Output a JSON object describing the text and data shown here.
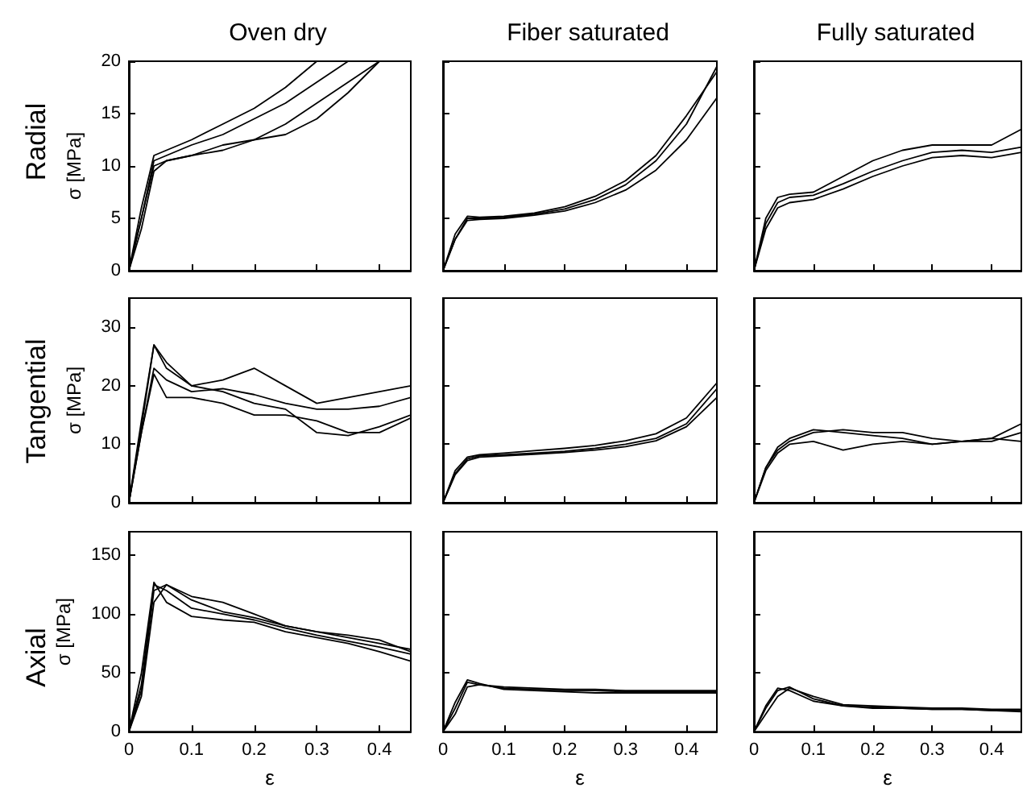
{
  "chart_data": [
    {
      "type": "line",
      "title": "Oven dry",
      "ylabel": "σ [MPa]",
      "annotations": [
        "Radial"
      ],
      "tick_labels": "y",
      "x": [
        0,
        0.02,
        0.04,
        0.06,
        0.1,
        0.15,
        0.2,
        0.25,
        0.3,
        0.35,
        0.4
      ],
      "xlim": [
        0,
        0.45
      ],
      "xticks": [
        0,
        0.1,
        0.2,
        0.3,
        0.4
      ],
      "ylim": [
        0,
        20
      ],
      "yticks": [
        0,
        5,
        10,
        15,
        20
      ],
      "series": [
        {
          "color": "#000000",
          "values": [
            0,
            6,
            11,
            11.5,
            12.5,
            14,
            15.5,
            17.5,
            20,
            null,
            null
          ]
        },
        {
          "color": "#000000",
          "values": [
            0,
            5,
            10.5,
            11,
            12,
            13,
            14.5,
            16,
            18,
            20,
            null
          ]
        },
        {
          "color": "#000000",
          "values": [
            0,
            5,
            10,
            10.5,
            11,
            11.5,
            12.5,
            14,
            16,
            18,
            20
          ]
        },
        {
          "color": "#000000",
          "values": [
            0,
            4,
            9.5,
            10.5,
            11,
            12,
            12.5,
            13,
            14.5,
            17,
            20
          ]
        }
      ]
    },
    {
      "type": "line",
      "title": "Fiber saturated",
      "tick_labels": false,
      "x": [
        0,
        0.02,
        0.04,
        0.06,
        0.1,
        0.15,
        0.2,
        0.25,
        0.3,
        0.35,
        0.4,
        0.45
      ],
      "xlim": [
        0,
        0.45
      ],
      "xticks": [
        0,
        0.1,
        0.2,
        0.3,
        0.4
      ],
      "ylim": [
        0,
        20
      ],
      "yticks": [
        0,
        5,
        10,
        15,
        20
      ],
      "series": [
        {
          "color": "#000000",
          "values": [
            0,
            3,
            5,
            5,
            5.1,
            5.4,
            5.9,
            6.8,
            8.2,
            10.5,
            14,
            19.5
          ]
        },
        {
          "color": "#000000",
          "values": [
            0,
            3.5,
            5.2,
            5.1,
            5.2,
            5.5,
            6.1,
            7.1,
            8.6,
            11,
            14.8,
            19
          ]
        },
        {
          "color": "#000000",
          "values": [
            0,
            3,
            4.8,
            4.9,
            5,
            5.3,
            5.7,
            6.5,
            7.7,
            9.6,
            12.5,
            16.5
          ]
        }
      ]
    },
    {
      "type": "line",
      "title": "Fully saturated",
      "tick_labels": false,
      "x": [
        0,
        0.02,
        0.04,
        0.06,
        0.1,
        0.15,
        0.2,
        0.25,
        0.3,
        0.35,
        0.4,
        0.45
      ],
      "xlim": [
        0,
        0.45
      ],
      "xticks": [
        0,
        0.1,
        0.2,
        0.3,
        0.4
      ],
      "ylim": [
        0,
        20
      ],
      "yticks": [
        0,
        5,
        10,
        15,
        20
      ],
      "series": [
        {
          "color": "#000000",
          "values": [
            0,
            4.5,
            6.5,
            7,
            7.2,
            8.3,
            9.5,
            10.5,
            11.3,
            11.5,
            11.3,
            11.8
          ]
        },
        {
          "color": "#000000",
          "values": [
            0,
            5,
            7,
            7.3,
            7.5,
            9,
            10.5,
            11.5,
            12,
            12,
            12,
            13.5
          ]
        },
        {
          "color": "#000000",
          "values": [
            0,
            4,
            6,
            6.5,
            6.8,
            7.8,
            9,
            10,
            10.8,
            11,
            10.8,
            11.3
          ]
        }
      ]
    },
    {
      "type": "line",
      "ylabel": "σ [MPa]",
      "annotations": [
        "Tangential"
      ],
      "tick_labels": "y",
      "x": [
        0,
        0.02,
        0.04,
        0.06,
        0.1,
        0.15,
        0.2,
        0.25,
        0.3,
        0.35,
        0.4,
        0.45
      ],
      "xlim": [
        0,
        0.45
      ],
      "xticks": [
        0,
        0.1,
        0.2,
        0.3,
        0.4
      ],
      "ylim": [
        0,
        35
      ],
      "yticks": [
        0,
        10,
        20,
        30
      ],
      "series": [
        {
          "color": "#000000",
          "values": [
            0,
            14,
            27,
            24,
            20,
            21,
            23,
            20,
            17,
            18,
            19,
            20
          ]
        },
        {
          "color": "#000000",
          "values": [
            0,
            12,
            23,
            21,
            19,
            19.5,
            18.5,
            17,
            16,
            16,
            16.5,
            18
          ]
        },
        {
          "color": "#000000",
          "values": [
            0,
            12,
            22,
            18,
            18,
            17,
            15,
            15,
            14,
            12,
            12,
            14.5
          ]
        },
        {
          "color": "#000000",
          "values": [
            0,
            13,
            27,
            23,
            20,
            19,
            17,
            16,
            12,
            11.5,
            13,
            15
          ]
        }
      ]
    },
    {
      "type": "line",
      "tick_labels": false,
      "x": [
        0,
        0.02,
        0.04,
        0.06,
        0.1,
        0.15,
        0.2,
        0.25,
        0.3,
        0.35,
        0.4,
        0.45
      ],
      "xlim": [
        0,
        0.45
      ],
      "xticks": [
        0,
        0.1,
        0.2,
        0.3,
        0.4
      ],
      "ylim": [
        0,
        35
      ],
      "yticks": [
        0,
        10,
        20,
        30
      ],
      "series": [
        {
          "color": "#000000",
          "values": [
            0,
            5,
            7.5,
            8,
            8.2,
            8.5,
            8.8,
            9.3,
            10,
            11,
            13.5,
            19.5
          ]
        },
        {
          "color": "#000000",
          "values": [
            0,
            5.5,
            7.8,
            8.2,
            8.5,
            8.9,
            9.3,
            9.8,
            10.6,
            11.8,
            14.5,
            20.5
          ]
        },
        {
          "color": "#000000",
          "values": [
            0,
            4.8,
            7.2,
            7.8,
            8,
            8.3,
            8.6,
            9,
            9.6,
            10.6,
            13,
            18
          ]
        }
      ]
    },
    {
      "type": "line",
      "tick_labels": false,
      "x": [
        0,
        0.02,
        0.04,
        0.06,
        0.1,
        0.15,
        0.2,
        0.25,
        0.3,
        0.35,
        0.4,
        0.45
      ],
      "xlim": [
        0,
        0.45
      ],
      "xticks": [
        0,
        0.1,
        0.2,
        0.3,
        0.4
      ],
      "ylim": [
        0,
        35
      ],
      "yticks": [
        0,
        10,
        20,
        30
      ],
      "series": [
        {
          "color": "#000000",
          "values": [
            0,
            6,
            9,
            10.5,
            12,
            12.5,
            12,
            12,
            11,
            10.5,
            10.5,
            12
          ]
        },
        {
          "color": "#000000",
          "values": [
            0,
            6,
            9.5,
            11,
            12.5,
            12,
            11.5,
            11,
            10,
            10.5,
            11,
            13.5
          ]
        },
        {
          "color": "#000000",
          "values": [
            0,
            5.5,
            8.5,
            10,
            10.5,
            9,
            10,
            10.5,
            10,
            10.5,
            11,
            10.5
          ]
        }
      ]
    },
    {
      "type": "line",
      "xlabel": "ε",
      "ylabel": "σ [MPa]",
      "annotations": [
        "Axial"
      ],
      "x": [
        0,
        0.02,
        0.04,
        0.06,
        0.1,
        0.15,
        0.2,
        0.25,
        0.3,
        0.35,
        0.4,
        0.45
      ],
      "xlim": [
        0,
        0.45
      ],
      "xticks": [
        0,
        0.1,
        0.2,
        0.3,
        0.4
      ],
      "ylim": [
        0,
        170
      ],
      "yticks": [
        0,
        50,
        100,
        150
      ],
      "series": [
        {
          "color": "#000000",
          "values": [
            0,
            40,
            125,
            120,
            105,
            100,
            95,
            88,
            82,
            77,
            72,
            66
          ]
        },
        {
          "color": "#000000",
          "values": [
            0,
            30,
            110,
            125,
            115,
            110,
            100,
            90,
            85,
            80,
            75,
            70
          ]
        },
        {
          "color": "#000000",
          "values": [
            0,
            50,
            127,
            110,
            98,
            95,
            93,
            85,
            80,
            75,
            68,
            60
          ]
        },
        {
          "color": "#000000",
          "values": [
            0,
            35,
            120,
            125,
            112,
            102,
            97,
            90,
            85,
            82,
            78,
            68
          ]
        }
      ]
    },
    {
      "type": "line",
      "xlabel": "ε",
      "tick_labels": "x",
      "x": [
        0,
        0.02,
        0.04,
        0.06,
        0.1,
        0.15,
        0.2,
        0.25,
        0.3,
        0.35,
        0.4,
        0.45
      ],
      "xlim": [
        0,
        0.45
      ],
      "xticks": [
        0,
        0.1,
        0.2,
        0.3,
        0.4
      ],
      "ylim": [
        0,
        170
      ],
      "yticks": [
        0,
        50,
        100,
        150
      ],
      "series": [
        {
          "color": "#000000",
          "values": [
            0,
            20,
            42,
            40,
            37,
            36,
            35,
            35,
            34,
            34,
            34,
            34
          ]
        },
        {
          "color": "#000000",
          "values": [
            0,
            15,
            38,
            40,
            38,
            37,
            36,
            36,
            35,
            35,
            35,
            35
          ]
        },
        {
          "color": "#000000",
          "values": [
            0,
            25,
            44,
            41,
            36,
            35,
            34,
            33,
            33,
            33,
            33,
            33
          ]
        }
      ]
    },
    {
      "type": "line",
      "xlabel": "ε",
      "tick_labels": "x",
      "x": [
        0,
        0.02,
        0.04,
        0.06,
        0.1,
        0.15,
        0.2,
        0.25,
        0.3,
        0.35,
        0.4,
        0.45
      ],
      "xlim": [
        0,
        0.45
      ],
      "xticks": [
        0,
        0.1,
        0.2,
        0.3,
        0.4
      ],
      "ylim": [
        0,
        170
      ],
      "yticks": [
        0,
        50,
        100,
        150
      ],
      "series": [
        {
          "color": "#000000",
          "values": [
            0,
            20,
            35,
            38,
            28,
            22,
            21,
            20,
            19,
            19,
            18,
            18
          ]
        },
        {
          "color": "#000000",
          "values": [
            0,
            15,
            30,
            37,
            30,
            23,
            22,
            21,
            20,
            20,
            19,
            19
          ]
        },
        {
          "color": "#000000",
          "values": [
            0,
            22,
            37,
            35,
            26,
            22,
            20,
            20,
            19,
            19,
            18,
            17
          ]
        }
      ]
    }
  ]
}
